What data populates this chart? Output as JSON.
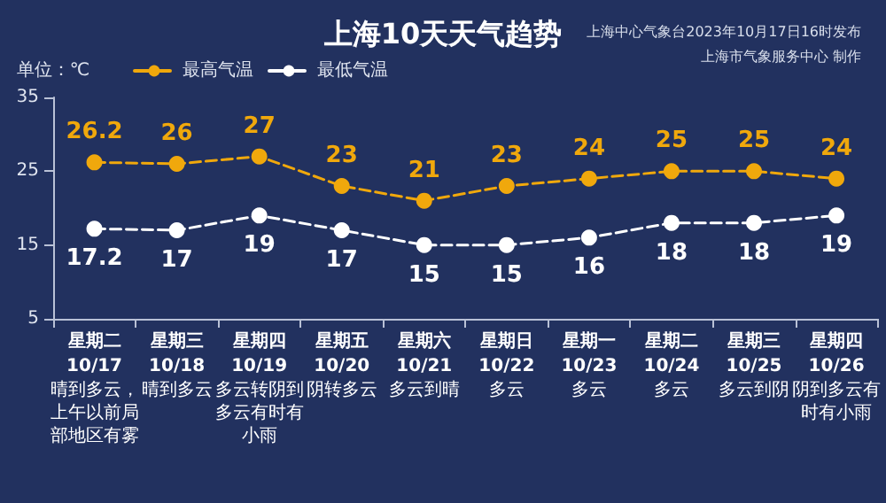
{
  "chart_data": {
    "type": "line",
    "title": "上海10天天气趋势",
    "ylabel": "单位：℃",
    "categories": [
      "星期二\n10/17\n晴到多云，上午以前局部地区有雾",
      "星期三\n10/18\n晴到多云",
      "星期四\n10/19\n多云转阴到多云有时有小雨",
      "星期五\n10/20\n阴转多云",
      "星期六\n10/21\n多云到晴",
      "星期日\n10/22\n多云",
      "星期一\n10/23\n多云",
      "星期二\n10/24\n多云",
      "星期三\n10/25\n多云到阴",
      "星期四\n10/26\n阴到多云有时有小雨"
    ],
    "series": [
      {
        "name": "最高气温",
        "color": "#f0a80c",
        "values": [
          26.2,
          26,
          27,
          23,
          21,
          23,
          24,
          25,
          25,
          24
        ]
      },
      {
        "name": "最低气温",
        "color": "#ffffff",
        "values": [
          17.2,
          17,
          19,
          17,
          15,
          15,
          16,
          18,
          18,
          19
        ]
      }
    ],
    "ylim": [
      5,
      35
    ],
    "yticks": [
      5,
      15,
      25,
      35
    ],
    "grid": false,
    "legend": "top left",
    "marker": "circle",
    "line_style": "dashed",
    "data_labels": true,
    "annotations": [
      "上海中心气象台2023年10月17日16时发布",
      "上海市气象服务中心 制作"
    ]
  }
}
